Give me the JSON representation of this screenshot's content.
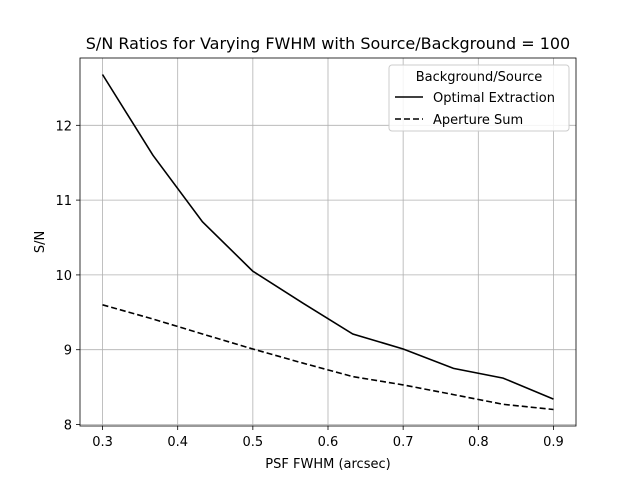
{
  "chart_data": {
    "type": "line",
    "title": "S/N Ratios for Varying FWHM with Source/Background = 100",
    "xlabel": "PSF FWHM (arcsec)",
    "ylabel": "S/N",
    "xlim": [
      0.27,
      0.93
    ],
    "ylim": [
      7.98,
      12.9
    ],
    "xticks": [
      "0.3",
      "0.4",
      "0.5",
      "0.6",
      "0.7",
      "0.8",
      "0.9"
    ],
    "yticks": [
      "8",
      "9",
      "10",
      "11",
      "12"
    ],
    "grid": true,
    "legend": {
      "title": "Background/Source",
      "placement": "top-right"
    },
    "series": [
      {
        "name": "Optimal Extraction",
        "style": "solid",
        "color": "#000000",
        "x": [
          0.3,
          0.367,
          0.433,
          0.5,
          0.567,
          0.633,
          0.7,
          0.767,
          0.833,
          0.9
        ],
        "y": [
          12.68,
          11.6,
          10.71,
          10.05,
          9.62,
          9.21,
          9.01,
          8.75,
          8.62,
          8.34
        ]
      },
      {
        "name": "Aperture Sum",
        "style": "dashed",
        "color": "#000000",
        "x": [
          0.3,
          0.367,
          0.433,
          0.5,
          0.567,
          0.633,
          0.7,
          0.767,
          0.833,
          0.9
        ],
        "y": [
          9.6,
          9.41,
          9.21,
          9.01,
          8.82,
          8.64,
          8.53,
          8.4,
          8.27,
          8.2
        ]
      }
    ]
  }
}
